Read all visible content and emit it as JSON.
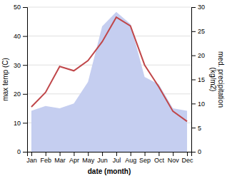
{
  "chart_data": {
    "type": "line",
    "categories": [
      "Jan",
      "Feb",
      "Mar",
      "Apr",
      "May",
      "Jun",
      "Jul",
      "Aug",
      "Sep",
      "Oct",
      "Nov",
      "Dec"
    ],
    "series": [
      {
        "type": "area",
        "axis": "y2",
        "color": "#c5cef0",
        "values": [
          8.5,
          9.5,
          9.0,
          10.0,
          14.5,
          26.0,
          29.0,
          26.5,
          15.5,
          14.0,
          9.0,
          8.5
        ]
      },
      {
        "type": "line",
        "color": "#c0474a",
        "values": [
          15.5,
          20.5,
          29.5,
          28.0,
          31.5,
          38.0,
          46.5,
          43.5,
          30.0,
          22.5,
          14.0,
          10.5
        ]
      }
    ],
    "xlabel": "date (month)",
    "ylabel": "max temp (C)",
    "y2label": "med. precipitation\n(kg/m2)",
    "ylim": [
      0,
      50
    ],
    "yticks": [
      0,
      10,
      20,
      30,
      40,
      50
    ],
    "y2lim": [
      0,
      30
    ],
    "y2ticks": [
      0,
      5,
      10,
      15,
      20,
      25,
      30
    ],
    "grid": true
  }
}
